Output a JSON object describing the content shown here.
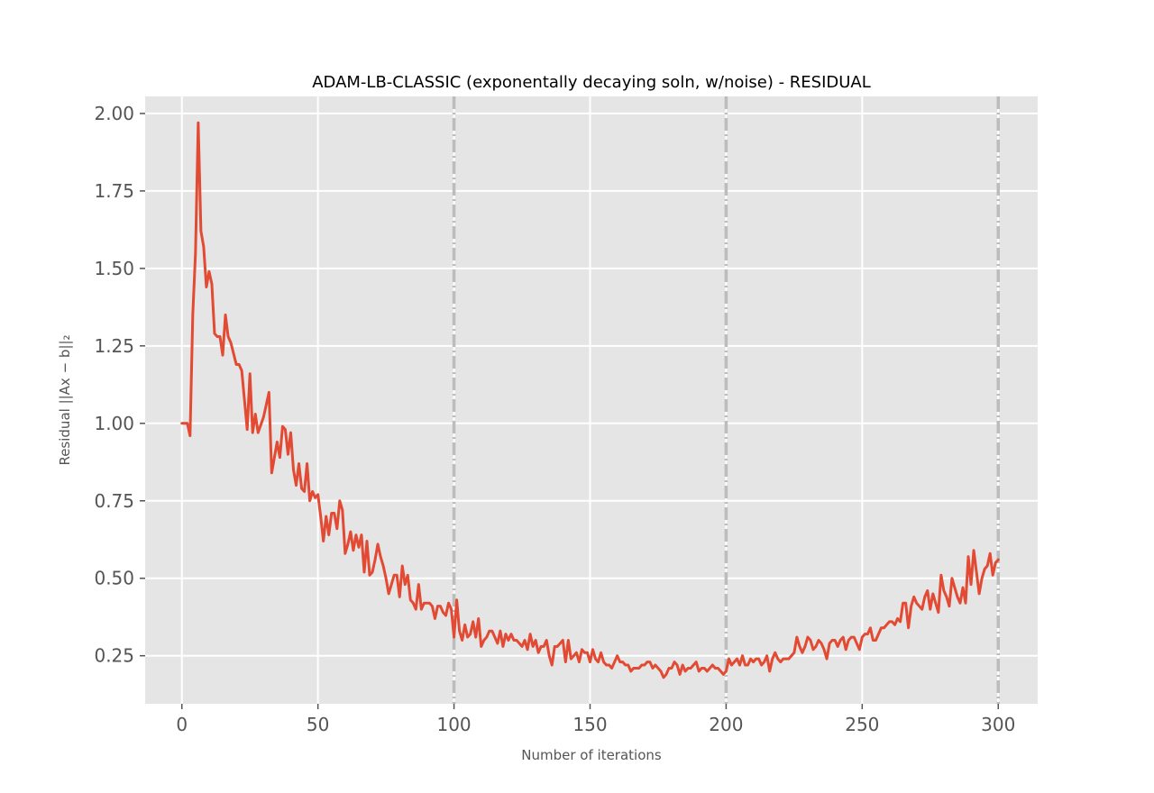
{
  "chart_data": {
    "type": "line",
    "title": "ADAM-LB-CLASSIC (exponentally decaying soln, w/noise) - RESIDUAL",
    "xlabel": "Number of iterations",
    "ylabel": "Residual ||Ax − b||₂",
    "xlim": [
      -13.5,
      314.5
    ],
    "ylim": [
      0.095,
      2.055
    ],
    "xticks": [
      "0",
      "50",
      "100",
      "150",
      "200",
      "250",
      "300"
    ],
    "yticks": [
      "0.25",
      "0.50",
      "0.75",
      "1.00",
      "1.25",
      "1.50",
      "1.75",
      "2.00"
    ],
    "vlines": [
      100,
      200,
      300
    ],
    "grid": true,
    "background": "#e5e5e5",
    "line_color": "#e24a33",
    "vline_color": "#bcbcbc",
    "series": [
      {
        "x": [
          0,
          1,
          2,
          3,
          4,
          5,
          6,
          7,
          8,
          9,
          10,
          11,
          12,
          13,
          14,
          15,
          16,
          17,
          18,
          20,
          21,
          22,
          24,
          25,
          26,
          27,
          28,
          30,
          31,
          32,
          33,
          35,
          36,
          37,
          38,
          39,
          40,
          41,
          42,
          43,
          44,
          45,
          46,
          47,
          48,
          49,
          50,
          51,
          52,
          53,
          54,
          55,
          56,
          57,
          58,
          59,
          60,
          61,
          62,
          63,
          64,
          65,
          66,
          67,
          68,
          69,
          70,
          71,
          72,
          73,
          74,
          75,
          76,
          77,
          78,
          79,
          80,
          81,
          82,
          83,
          84,
          85,
          86,
          87,
          88,
          89,
          90,
          91,
          92,
          93,
          94,
          95,
          96,
          97,
          98,
          99,
          100,
          101,
          102,
          103,
          104,
          105,
          106,
          107,
          108,
          109,
          110,
          111,
          112,
          113,
          114,
          115,
          116,
          117,
          118,
          119,
          120,
          121,
          122,
          123,
          124,
          125,
          126,
          127,
          128,
          129,
          130,
          131,
          132,
          133,
          134,
          135,
          136,
          137,
          138,
          139,
          140,
          141,
          142,
          143,
          144,
          145,
          146,
          147,
          148,
          149,
          150,
          151,
          152,
          153,
          154,
          155,
          156,
          157,
          158,
          159,
          160,
          161,
          162,
          163,
          164,
          165,
          166,
          167,
          168,
          169,
          170,
          171,
          172,
          173,
          174,
          175,
          176,
          177,
          178,
          179,
          180,
          181,
          182,
          183,
          184,
          185,
          186,
          187,
          188,
          189,
          190,
          191,
          192,
          193,
          194,
          195,
          196,
          197,
          198,
          199,
          200,
          201,
          202,
          203,
          204,
          205,
          206,
          207,
          208,
          209,
          210,
          211,
          212,
          213,
          214,
          215,
          216,
          217,
          218,
          219,
          220,
          221,
          222,
          223,
          224,
          225,
          226,
          227,
          228,
          229,
          230,
          231,
          232,
          233,
          234,
          235,
          236,
          237,
          238,
          239,
          240,
          241,
          242,
          243,
          244,
          245,
          246,
          247,
          248,
          249,
          250,
          251,
          252,
          253,
          254,
          255,
          256,
          257,
          258,
          259,
          260,
          261,
          262,
          263,
          264,
          265,
          266,
          267,
          268,
          269,
          270,
          271,
          272,
          273,
          274,
          275,
          276,
          277,
          278,
          279,
          280,
          281,
          282,
          283,
          284,
          285,
          286,
          287,
          288,
          289,
          290,
          291,
          292,
          293,
          294,
          295,
          296,
          297,
          298,
          299,
          300
        ],
        "y": [
          1.0,
          1.0,
          1.0,
          0.96,
          1.35,
          1.55,
          1.97,
          1.62,
          1.57,
          1.44,
          1.49,
          1.45,
          1.29,
          1.28,
          1.28,
          1.22,
          1.35,
          1.28,
          1.26,
          1.19,
          1.19,
          1.17,
          0.98,
          1.16,
          0.97,
          1.03,
          0.97,
          1.02,
          1.06,
          1.1,
          0.84,
          0.94,
          0.89,
          0.99,
          0.98,
          0.9,
          0.97,
          0.85,
          0.8,
          0.87,
          0.79,
          0.78,
          0.87,
          0.75,
          0.78,
          0.76,
          0.77,
          0.7,
          0.62,
          0.7,
          0.64,
          0.71,
          0.71,
          0.66,
          0.75,
          0.72,
          0.58,
          0.61,
          0.65,
          0.59,
          0.64,
          0.6,
          0.64,
          0.52,
          0.62,
          0.51,
          0.52,
          0.56,
          0.61,
          0.57,
          0.54,
          0.5,
          0.45,
          0.48,
          0.51,
          0.51,
          0.44,
          0.54,
          0.48,
          0.51,
          0.43,
          0.42,
          0.4,
          0.48,
          0.4,
          0.42,
          0.42,
          0.42,
          0.41,
          0.37,
          0.41,
          0.41,
          0.39,
          0.38,
          0.42,
          0.4,
          0.31,
          0.43,
          0.33,
          0.3,
          0.35,
          0.31,
          0.32,
          0.36,
          0.31,
          0.37,
          0.28,
          0.3,
          0.31,
          0.33,
          0.33,
          0.31,
          0.29,
          0.33,
          0.28,
          0.32,
          0.3,
          0.32,
          0.3,
          0.3,
          0.29,
          0.28,
          0.3,
          0.27,
          0.32,
          0.28,
          0.3,
          0.26,
          0.28,
          0.28,
          0.3,
          0.25,
          0.22,
          0.28,
          0.28,
          0.29,
          0.3,
          0.23,
          0.3,
          0.24,
          0.25,
          0.26,
          0.23,
          0.27,
          0.26,
          0.26,
          0.23,
          0.27,
          0.24,
          0.23,
          0.26,
          0.23,
          0.22,
          0.22,
          0.21,
          0.23,
          0.25,
          0.23,
          0.23,
          0.22,
          0.22,
          0.2,
          0.21,
          0.21,
          0.21,
          0.22,
          0.22,
          0.23,
          0.23,
          0.21,
          0.22,
          0.21,
          0.2,
          0.18,
          0.19,
          0.21,
          0.21,
          0.23,
          0.22,
          0.19,
          0.22,
          0.2,
          0.21,
          0.21,
          0.22,
          0.23,
          0.2,
          0.21,
          0.21,
          0.2,
          0.21,
          0.22,
          0.21,
          0.21,
          0.2,
          0.19,
          0.2,
          0.24,
          0.22,
          0.23,
          0.24,
          0.22,
          0.25,
          0.22,
          0.22,
          0.24,
          0.23,
          0.24,
          0.24,
          0.22,
          0.23,
          0.25,
          0.2,
          0.24,
          0.26,
          0.24,
          0.23,
          0.24,
          0.24,
          0.24,
          0.25,
          0.26,
          0.31,
          0.28,
          0.26,
          0.28,
          0.31,
          0.3,
          0.27,
          0.28,
          0.3,
          0.29,
          0.27,
          0.24,
          0.29,
          0.3,
          0.3,
          0.28,
          0.3,
          0.31,
          0.27,
          0.3,
          0.31,
          0.31,
          0.29,
          0.27,
          0.31,
          0.32,
          0.32,
          0.34,
          0.3,
          0.3,
          0.32,
          0.34,
          0.34,
          0.35,
          0.36,
          0.36,
          0.35,
          0.37,
          0.36,
          0.42,
          0.42,
          0.34,
          0.41,
          0.44,
          0.42,
          0.41,
          0.4,
          0.44,
          0.46,
          0.4,
          0.45,
          0.42,
          0.39,
          0.51,
          0.46,
          0.44,
          0.41,
          0.5,
          0.47,
          0.44,
          0.42,
          0.47,
          0.42,
          0.57,
          0.48,
          0.59,
          0.52,
          0.45,
          0.5,
          0.53,
          0.54,
          0.58,
          0.51,
          0.55,
          0.56
        ]
      }
    ]
  }
}
